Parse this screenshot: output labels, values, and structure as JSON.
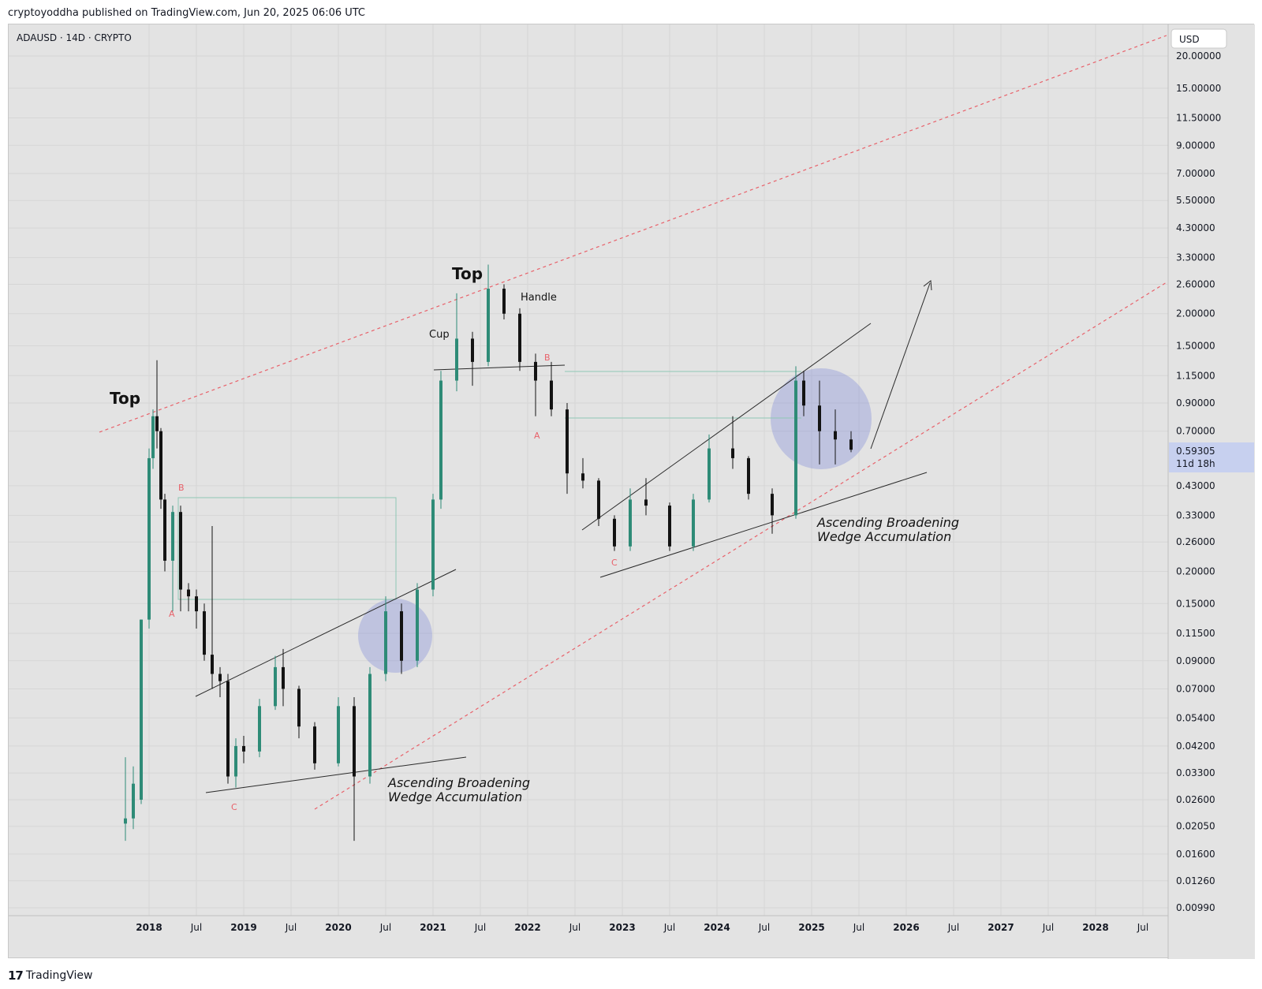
{
  "header": {
    "published_text": "cryptoyoddha published on TradingView.com, Jun 20, 2025 06:06 UTC"
  },
  "footer": {
    "brand": "TradingView"
  },
  "symbol_label": "ADAUSD · 14D · CRYPTO",
  "currency_button": "USD",
  "price_label": {
    "price": "0.59305",
    "countdown": "11d 18h"
  },
  "colors": {
    "up": "#2e8b77",
    "down": "#131313",
    "accent": "#e8616a",
    "circle": "#7b86d8",
    "bg": "#e3e3e3"
  },
  "annotations": {
    "top1": "Top",
    "top2": "Top",
    "cup": "Cup",
    "handle": "Handle",
    "a1": "A",
    "b1": "B",
    "c1": "C",
    "a2": "A",
    "b2": "B",
    "c2": "C",
    "wedge1_line1": "Ascending Broadening",
    "wedge1_line2": "Wedge Accumulation",
    "wedge2_line1": "Ascending Broadening",
    "wedge2_line2": "Wedge Accumulation"
  },
  "chart_data": {
    "type": "candlestick",
    "symbol": "ADAUSD",
    "interval": "14D",
    "exchange": "CRYPTO",
    "scale": "log",
    "y_ticks": [
      "20.00000",
      "15.00000",
      "11.50000",
      "9.00000",
      "7.00000",
      "5.50000",
      "4.30000",
      "3.30000",
      "2.60000",
      "2.00000",
      "1.50000",
      "1.15000",
      "0.90000",
      "0.70000",
      "0.43000",
      "0.33000",
      "0.26000",
      "0.20000",
      "0.15000",
      "0.11500",
      "0.09000",
      "0.07000",
      "0.05400",
      "0.04200",
      "0.03300",
      "0.02600",
      "0.02050",
      "0.01600",
      "0.01260",
      "0.00990"
    ],
    "x_ticks": [
      "2018",
      "Jul",
      "2019",
      "Jul",
      "2020",
      "Jul",
      "2021",
      "Jul",
      "2022",
      "Jul",
      "2023",
      "Jul",
      "2024",
      "Jul",
      "2025",
      "Jul",
      "2026",
      "Jul",
      "2027",
      "Jul",
      "2028",
      "Jul"
    ],
    "last_price": 0.59305,
    "series": [
      {
        "t": "2017-10",
        "o": 0.021,
        "h": 0.038,
        "l": 0.018,
        "c": 0.022
      },
      {
        "t": "2017-11",
        "o": 0.022,
        "h": 0.035,
        "l": 0.02,
        "c": 0.03
      },
      {
        "t": "2017-12",
        "o": 0.026,
        "h": 0.13,
        "l": 0.025,
        "c": 0.13
      },
      {
        "t": "2018-01",
        "o": 0.13,
        "h": 0.6,
        "l": 0.12,
        "c": 0.55
      },
      {
        "t": "2018-01",
        "o": 0.55,
        "h": 0.85,
        "l": 0.5,
        "c": 0.8
      },
      {
        "t": "2018-02",
        "o": 0.8,
        "h": 1.32,
        "l": 0.6,
        "c": 0.7
      },
      {
        "t": "2018-02",
        "o": 0.7,
        "h": 0.72,
        "l": 0.35,
        "c": 0.38
      },
      {
        "t": "2018-03",
        "o": 0.38,
        "h": 0.4,
        "l": 0.2,
        "c": 0.22
      },
      {
        "t": "2018-04",
        "o": 0.22,
        "h": 0.36,
        "l": 0.14,
        "c": 0.34
      },
      {
        "t": "2018-05",
        "o": 0.34,
        "h": 0.36,
        "l": 0.14,
        "c": 0.17
      },
      {
        "t": "2018-06",
        "o": 0.17,
        "h": 0.18,
        "l": 0.14,
        "c": 0.16
      },
      {
        "t": "2018-07",
        "o": 0.16,
        "h": 0.17,
        "l": 0.12,
        "c": 0.14
      },
      {
        "t": "2018-08",
        "o": 0.14,
        "h": 0.15,
        "l": 0.09,
        "c": 0.095
      },
      {
        "t": "2018-09",
        "o": 0.095,
        "h": 0.3,
        "l": 0.07,
        "c": 0.08
      },
      {
        "t": "2018-10",
        "o": 0.08,
        "h": 0.085,
        "l": 0.065,
        "c": 0.075
      },
      {
        "t": "2018-11",
        "o": 0.075,
        "h": 0.08,
        "l": 0.03,
        "c": 0.032
      },
      {
        "t": "2018-12",
        "o": 0.032,
        "h": 0.045,
        "l": 0.029,
        "c": 0.042
      },
      {
        "t": "2019-01",
        "o": 0.042,
        "h": 0.046,
        "l": 0.036,
        "c": 0.04
      },
      {
        "t": "2019-03",
        "o": 0.04,
        "h": 0.064,
        "l": 0.038,
        "c": 0.06
      },
      {
        "t": "2019-05",
        "o": 0.06,
        "h": 0.094,
        "l": 0.058,
        "c": 0.085
      },
      {
        "t": "2019-06",
        "o": 0.085,
        "h": 0.1,
        "l": 0.06,
        "c": 0.07
      },
      {
        "t": "2019-08",
        "o": 0.07,
        "h": 0.072,
        "l": 0.045,
        "c": 0.05
      },
      {
        "t": "2019-10",
        "o": 0.05,
        "h": 0.052,
        "l": 0.034,
        "c": 0.036
      },
      {
        "t": "2020-01",
        "o": 0.036,
        "h": 0.065,
        "l": 0.035,
        "c": 0.06
      },
      {
        "t": "2020-03",
        "o": 0.06,
        "h": 0.065,
        "l": 0.018,
        "c": 0.032
      },
      {
        "t": "2020-05",
        "o": 0.032,
        "h": 0.085,
        "l": 0.03,
        "c": 0.08
      },
      {
        "t": "2020-07",
        "o": 0.08,
        "h": 0.16,
        "l": 0.075,
        "c": 0.14
      },
      {
        "t": "2020-09",
        "o": 0.14,
        "h": 0.15,
        "l": 0.08,
        "c": 0.09
      },
      {
        "t": "2020-11",
        "o": 0.09,
        "h": 0.18,
        "l": 0.085,
        "c": 0.17
      },
      {
        "t": "2021-01",
        "o": 0.17,
        "h": 0.4,
        "l": 0.16,
        "c": 0.38
      },
      {
        "t": "2021-02",
        "o": 0.38,
        "h": 1.2,
        "l": 0.35,
        "c": 1.1
      },
      {
        "t": "2021-04",
        "o": 1.1,
        "h": 2.4,
        "l": 1.0,
        "c": 1.6
      },
      {
        "t": "2021-06",
        "o": 1.6,
        "h": 1.7,
        "l": 1.05,
        "c": 1.3
      },
      {
        "t": "2021-08",
        "o": 1.3,
        "h": 3.1,
        "l": 1.25,
        "c": 2.5
      },
      {
        "t": "2021-10",
        "o": 2.5,
        "h": 2.6,
        "l": 1.9,
        "c": 2.0
      },
      {
        "t": "2021-12",
        "o": 2.0,
        "h": 2.1,
        "l": 1.2,
        "c": 1.3
      },
      {
        "t": "2022-02",
        "o": 1.3,
        "h": 1.4,
        "l": 0.8,
        "c": 1.1
      },
      {
        "t": "2022-04",
        "o": 1.1,
        "h": 1.3,
        "l": 0.8,
        "c": 0.85
      },
      {
        "t": "2022-06",
        "o": 0.85,
        "h": 0.9,
        "l": 0.4,
        "c": 0.48
      },
      {
        "t": "2022-08",
        "o": 0.48,
        "h": 0.55,
        "l": 0.42,
        "c": 0.45
      },
      {
        "t": "2022-10",
        "o": 0.45,
        "h": 0.46,
        "l": 0.3,
        "c": 0.32
      },
      {
        "t": "2022-12",
        "o": 0.32,
        "h": 0.33,
        "l": 0.24,
        "c": 0.25
      },
      {
        "t": "2023-02",
        "o": 0.25,
        "h": 0.42,
        "l": 0.24,
        "c": 0.38
      },
      {
        "t": "2023-04",
        "o": 0.38,
        "h": 0.46,
        "l": 0.33,
        "c": 0.36
      },
      {
        "t": "2023-07",
        "o": 0.36,
        "h": 0.37,
        "l": 0.24,
        "c": 0.25
      },
      {
        "t": "2023-10",
        "o": 0.25,
        "h": 0.4,
        "l": 0.24,
        "c": 0.38
      },
      {
        "t": "2023-12",
        "o": 0.38,
        "h": 0.68,
        "l": 0.37,
        "c": 0.6
      },
      {
        "t": "2024-03",
        "o": 0.6,
        "h": 0.8,
        "l": 0.5,
        "c": 0.55
      },
      {
        "t": "2024-05",
        "o": 0.55,
        "h": 0.56,
        "l": 0.38,
        "c": 0.4
      },
      {
        "t": "2024-08",
        "o": 0.4,
        "h": 0.42,
        "l": 0.28,
        "c": 0.33
      },
      {
        "t": "2024-11",
        "o": 0.33,
        "h": 1.25,
        "l": 0.32,
        "c": 1.1
      },
      {
        "t": "2024-12",
        "o": 1.1,
        "h": 1.2,
        "l": 0.8,
        "c": 0.88
      },
      {
        "t": "2025-02",
        "o": 0.88,
        "h": 1.1,
        "l": 0.52,
        "c": 0.7
      },
      {
        "t": "2025-04",
        "o": 0.7,
        "h": 0.85,
        "l": 0.52,
        "c": 0.65
      },
      {
        "t": "2025-06",
        "o": 0.65,
        "h": 0.7,
        "l": 0.58,
        "c": 0.59305
      }
    ]
  }
}
